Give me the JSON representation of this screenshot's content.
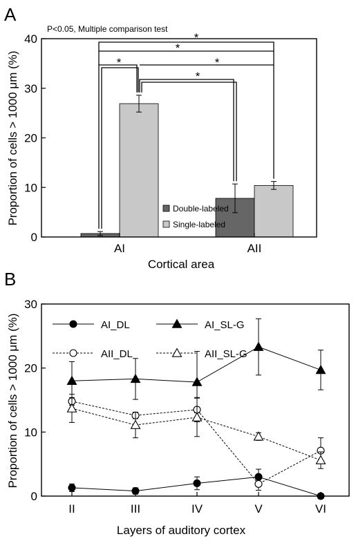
{
  "chart_data": [
    {
      "panel_label": "A",
      "type": "bar",
      "annotation": "P<0.05, Multiple comparison test",
      "xlabel": "Cortical area",
      "ylabel": "Proportion of cells > 1000 μm (%)",
      "ylim": [
        0,
        40
      ],
      "yticks": [
        "0",
        "10",
        "20",
        "30",
        "40"
      ],
      "categories": [
        "AI",
        "AII"
      ],
      "series": [
        {
          "name": "Double-labeled",
          "color": "#666666",
          "values": [
            0.7,
            7.8
          ],
          "errors": [
            0.4,
            2.9
          ]
        },
        {
          "name": "Single-labeled",
          "color": "#c8c8c8",
          "values": [
            26.9,
            10.4
          ],
          "errors": [
            1.7,
            0.8
          ]
        }
      ],
      "significance_marker": "*",
      "legend_position": "bottom-center"
    },
    {
      "panel_label": "B",
      "type": "line",
      "xlabel": "Layers of auditory cortex",
      "ylabel": "Proportion of cells > 1000 μm (%)",
      "ylim": [
        0,
        30
      ],
      "yticks": [
        "0",
        "10",
        "20",
        "30"
      ],
      "categories": [
        "II",
        "III",
        "IV",
        "V",
        "VI"
      ],
      "series": [
        {
          "name": "AI_DL",
          "marker": "filled-circle",
          "line": "solid",
          "values": [
            1.3,
            0.8,
            2.0,
            3.0,
            0.0
          ],
          "errors": [
            0.6,
            0.5,
            1.0,
            1.2,
            0.0
          ]
        },
        {
          "name": "AI_SL-G",
          "marker": "filled-triangle",
          "line": "solid",
          "values": [
            18.0,
            18.3,
            17.8,
            23.3,
            19.7
          ],
          "errors": [
            3.0,
            3.2,
            4.8,
            4.4,
            3.1
          ]
        },
        {
          "name": "AII_DL",
          "marker": "open-circle",
          "line": "dashed",
          "values": [
            14.8,
            12.6,
            13.5,
            1.9,
            7.1
          ],
          "errors": [
            0.6,
            0.5,
            1.9,
            1.0,
            2.0
          ]
        },
        {
          "name": "AII_SL-G",
          "marker": "open-triangle",
          "line": "dashed",
          "values": [
            13.7,
            11.1,
            12.3,
            9.3,
            5.6
          ],
          "errors": [
            2.2,
            2.0,
            3.0,
            0.6,
            1.3
          ]
        }
      ],
      "legend_position": "top-left"
    }
  ]
}
